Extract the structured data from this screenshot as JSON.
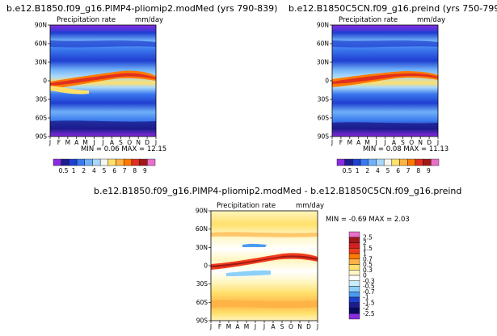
{
  "chart_data": [
    {
      "type": "heatmap",
      "title": "b.e12.B1850.f09_g16.PlMP4-pliomip2.modMed (yrs 790-839)",
      "subtitle": "Precipitation rate",
      "units": "mm/day",
      "stats": "MIN =  0.06 MAX =  12.15",
      "x_ticks": [
        "J",
        "F",
        "M",
        "A",
        "M",
        "J",
        "J",
        "A",
        "S",
        "O",
        "N",
        "D",
        "J"
      ],
      "y_ticks": [
        "90N",
        "60N",
        "30N",
        "0",
        "30S",
        "60S",
        "90S"
      ],
      "colorbar_labels": [
        "0.5",
        "1",
        "2",
        "4",
        "5",
        "6",
        "7",
        "8",
        "9"
      ],
      "colorbar_colors": [
        "#8a2be2",
        "#1c1c8c",
        "#1f3fd0",
        "#3a78ee",
        "#6fb0f8",
        "#a8d8fc",
        "#f5f5f0",
        "#ffe06a",
        "#ffb347",
        "#ff7a00",
        "#e03020",
        "#a01818",
        "#e870c8"
      ],
      "min": 0.06,
      "max": 12.15
    },
    {
      "type": "heatmap",
      "title": "b.e12.B1850C5CN.f09_g16.preind (yrs 750-799)",
      "subtitle": "Precipitation rate",
      "units": "mm/day",
      "stats": "MIN =  0.08 MAX =  11.13",
      "x_ticks": [
        "J",
        "F",
        "M",
        "A",
        "M",
        "J",
        "J",
        "A",
        "S",
        "O",
        "N",
        "D",
        "J"
      ],
      "y_ticks": [
        "90N",
        "60N",
        "30N",
        "0",
        "30S",
        "60S",
        "90S"
      ],
      "colorbar_labels": [
        "0.5",
        "1",
        "2",
        "4",
        "5",
        "6",
        "7",
        "8",
        "9"
      ],
      "min": 0.08,
      "max": 11.13
    },
    {
      "type": "heatmap",
      "title": "b.e12.B1850.f09_g16.PlMP4-pliomip2.modMed - b.e12.B1850C5CN.f09_g16.preind",
      "subtitle": "Precipitation rate",
      "units": "mm/day",
      "stats": "MIN = -0.69 MAX =   2.03",
      "x_ticks": [
        "J",
        "F",
        "M",
        "A",
        "M",
        "J",
        "J",
        "A",
        "S",
        "O",
        "N",
        "D",
        "J"
      ],
      "y_ticks": [
        "90N",
        "60N",
        "30N",
        "0",
        "30S",
        "60S",
        "90S"
      ],
      "colorbar_labels": [
        "2.5",
        "2",
        "1.5",
        "1",
        "0.7",
        "0.5",
        "0.3",
        "0",
        "-0.3",
        "-0.5",
        "-0.7",
        "-1",
        "-1.5",
        "-2",
        "-2.5"
      ],
      "colorbar_colors": [
        "#e870c8",
        "#a01818",
        "#d02020",
        "#f03c1c",
        "#ff7a00",
        "#ffb347",
        "#ffe06a",
        "#fff6c0",
        "#ffffff",
        "#c8eefa",
        "#8cd0f8",
        "#4a9cf0",
        "#1f3fd0",
        "#1c1c8c",
        "#0a0a60",
        "#8a2be2"
      ],
      "min": -0.69,
      "max": 2.03
    }
  ]
}
